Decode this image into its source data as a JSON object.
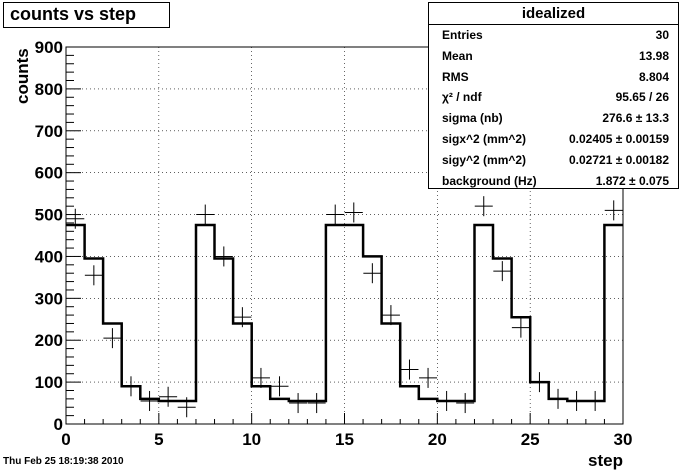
{
  "title": "counts vs step",
  "date": "Thu Feb 25 18:19:38 2010",
  "stats": {
    "name": "idealized",
    "rows": [
      {
        "label": "Entries",
        "value": "30"
      },
      {
        "label": "Mean",
        "value": "13.98"
      },
      {
        "label": "RMS",
        "value": "8.804"
      },
      {
        "label": "χ² / ndf",
        "value": "95.65 / 26"
      },
      {
        "label": "sigma (nb)",
        "value": "276.6 ± 13.3"
      },
      {
        "label": "sigx^2 (mm^2)",
        "value": "0.02405 ± 0.00159"
      },
      {
        "label": "sigy^2 (mm^2)",
        "value": "0.02721 ± 0.00182"
      },
      {
        "label": "background (Hz)",
        "value": "1.872 ± 0.075"
      }
    ]
  },
  "chart_data": {
    "type": "line",
    "xlabel": "step",
    "ylabel": "counts",
    "xlim": [
      0,
      30
    ],
    "ylim": [
      0,
      900
    ],
    "xticks": [
      "0",
      "5",
      "10",
      "15",
      "20",
      "25",
      "30"
    ],
    "yticks": [
      "0",
      "100",
      "200",
      "300",
      "400",
      "500",
      "600",
      "700",
      "800",
      "900"
    ],
    "grid": true,
    "series": [
      {
        "kind": "data-points",
        "x": [
          0.5,
          1.5,
          2.5,
          3.5,
          4.5,
          5.5,
          6.5,
          7.5,
          8.5,
          9.5,
          10.5,
          11.5,
          12.5,
          13.5,
          14.5,
          15.5,
          16.5,
          17.5,
          18.5,
          19.5,
          20.5,
          21.5,
          22.5,
          23.5,
          24.5,
          25.5,
          26.5,
          27.5,
          28.5,
          29.5
        ],
        "y": [
          490,
          355,
          205,
          90,
          55,
          65,
          40,
          500,
          400,
          255,
          110,
          90,
          50,
          50,
          500,
          505,
          360,
          260,
          130,
          110,
          55,
          50,
          520,
          365,
          230,
          100,
          60,
          55,
          55,
          510
        ]
      },
      {
        "kind": "fit-step",
        "y": [
          475,
          395,
          240,
          90,
          60,
          55,
          55,
          475,
          395,
          240,
          90,
          60,
          55,
          55,
          475,
          475,
          400,
          240,
          90,
          60,
          55,
          55,
          475,
          395,
          255,
          100,
          60,
          55,
          55,
          475
        ]
      }
    ]
  }
}
